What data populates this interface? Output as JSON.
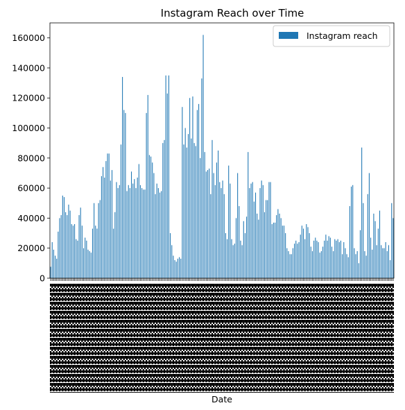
{
  "chart_data": {
    "type": "bar",
    "title": "Instagram Reach over Time",
    "xlabel": "Date",
    "ylabel": "",
    "ylim": [
      0,
      170000
    ],
    "yticks": [
      0,
      20000,
      40000,
      60000,
      80000,
      100000,
      120000,
      140000,
      160000
    ],
    "grid": false,
    "legend_position": "top-right",
    "color": "#1f77b4",
    "series": [
      {
        "name": "Instagram reach",
        "values": [
          7620,
          24000,
          19000,
          15000,
          13000,
          31000,
          40000,
          42000,
          55000,
          54000,
          44000,
          42000,
          49000,
          45000,
          36000,
          35000,
          36000,
          26000,
          25000,
          42000,
          47000,
          35000,
          20000,
          27000,
          25000,
          19000,
          18000,
          17000,
          33000,
          50000,
          35000,
          33000,
          50000,
          52000,
          68000,
          74000,
          67000,
          78000,
          83000,
          83000,
          65000,
          72000,
          33000,
          44000,
          64000,
          60000,
          62000,
          89000,
          134000,
          112000,
          110000,
          58000,
          62000,
          60000,
          71000,
          63000,
          66000,
          60000,
          67000,
          76000,
          62000,
          60000,
          59000,
          59000,
          110000,
          122000,
          82000,
          81000,
          77000,
          70000,
          56000,
          63000,
          60000,
          57000,
          58000,
          90000,
          92000,
          135000,
          123000,
          135000,
          30000,
          22000,
          15000,
          12000,
          11000,
          13000,
          14000,
          13000,
          114000,
          89000,
          100000,
          87000,
          96000,
          120000,
          93000,
          121000,
          90000,
          88000,
          112000,
          116000,
          80000,
          133000,
          162000,
          84000,
          71000,
          72000,
          73000,
          56000,
          92000,
          70000,
          62000,
          77000,
          85000,
          64000,
          60000,
          65000,
          56000,
          30000,
          26000,
          75000,
          63000,
          26000,
          22000,
          23000,
          40000,
          70000,
          48000,
          25000,
          22000,
          38000,
          30000,
          41000,
          84000,
          60000,
          63000,
          64000,
          51000,
          57000,
          43000,
          39000,
          60000,
          65000,
          62000,
          44000,
          52000,
          52000,
          64000,
          64000,
          36000,
          37000,
          37000,
          42000,
          46000,
          43000,
          40000,
          35000,
          35000,
          30000,
          20000,
          18000,
          16000,
          16000,
          20000,
          23000,
          25000,
          23000,
          24000,
          29000,
          35000,
          33000,
          26000,
          36000,
          34000,
          30000,
          21000,
          18000,
          25000,
          27000,
          25000,
          24000,
          17000,
          18000,
          21000,
          25000,
          29000,
          25000,
          28000,
          27000,
          21000,
          18000,
          26000,
          25000,
          26000,
          24000,
          25000,
          16000,
          24000,
          20000,
          16000,
          14000,
          48000,
          61000,
          62000,
          20000,
          16000,
          18000,
          10000,
          32000,
          87000,
          50000,
          18000,
          15000,
          56000,
          70000,
          27000,
          19000,
          43000,
          38000,
          22000,
          33000,
          45000,
          22000,
          20000,
          20000,
          24000,
          18000,
          22000,
          12000,
          50000,
          40000
        ]
      }
    ]
  }
}
